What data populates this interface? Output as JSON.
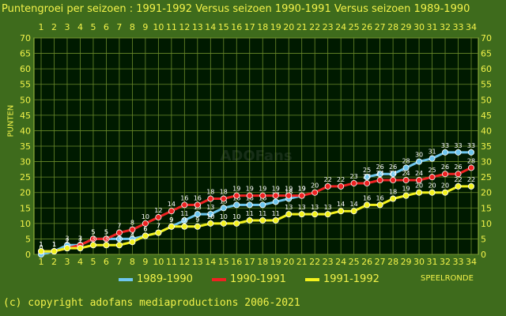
{
  "header": {
    "title": "Puntengroei per seizoen : 1991-1992 Versus seizoen 1990-1991 Versus seizoen 1989-1990",
    "copyright": "(c) copyright adofans mediaproductions 2006-2021",
    "watermark": "ADOFans"
  },
  "colors": {
    "background": "#3e6b1c",
    "plot_area": "#001a00",
    "text": "#f2f24a"
  },
  "chart_data": {
    "type": "line",
    "title": "Puntengroei per seizoen : 1991-1992 Versus seizoen 1990-1991 Versus seizoen 1989-1990",
    "xlabel": "SPEELRONDE",
    "ylabel": "PUNTEN",
    "x": [
      1,
      2,
      3,
      4,
      5,
      6,
      7,
      8,
      9,
      10,
      11,
      12,
      13,
      14,
      15,
      16,
      17,
      18,
      19,
      20,
      21,
      22,
      23,
      24,
      25,
      26,
      27,
      28,
      29,
      30,
      31,
      32,
      33,
      34
    ],
    "ylim": [
      0,
      70
    ],
    "yticks": [
      0,
      5,
      10,
      15,
      20,
      25,
      30,
      35,
      40,
      45,
      50,
      55,
      60,
      65,
      70
    ],
    "grid": true,
    "legend_position": "bottom",
    "series": [
      {
        "name": "1989-1990",
        "color": "#6ec6ee",
        "values": [
          0,
          1,
          3,
          3,
          5,
          5,
          5,
          5,
          6,
          7,
          9,
          11,
          13,
          13,
          15,
          16,
          16,
          16,
          17,
          18,
          19,
          null,
          null,
          null,
          null,
          25,
          26,
          26,
          28,
          30,
          31,
          33,
          33,
          33
        ]
      },
      {
        "name": "1990-1991",
        "color": "#ee2222",
        "values": [
          1,
          1,
          2,
          3,
          5,
          5,
          7,
          8,
          10,
          12,
          14,
          16,
          16,
          18,
          18,
          19,
          19,
          19,
          19,
          19,
          19,
          20,
          22,
          22,
          23,
          23,
          24,
          24,
          24,
          24,
          25,
          26,
          26,
          28
        ]
      },
      {
        "name": "1991-1992",
        "color": "#f2f21c",
        "values": [
          1,
          1,
          2,
          2,
          3,
          3,
          3,
          4,
          6,
          7,
          9,
          9,
          9,
          10,
          10,
          10,
          11,
          11,
          11,
          13,
          13,
          13,
          13,
          14,
          14,
          16,
          16,
          18,
          19,
          20,
          20,
          20,
          22,
          22
        ]
      }
    ]
  }
}
